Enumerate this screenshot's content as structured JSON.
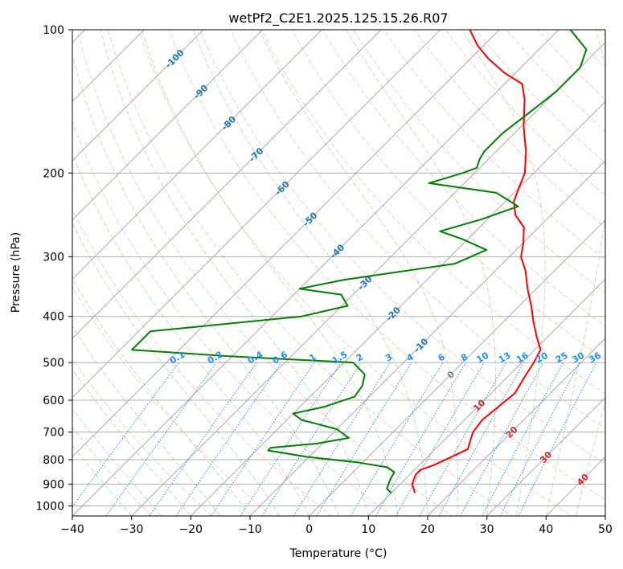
{
  "chart_data": {
    "type": "line",
    "subtype": "skew-t log-p diagram",
    "title": "wetPf2_C2E1.2025.125.15.26.R07",
    "xlabel": "Temperature (°C)",
    "ylabel": "Pressure (hPa)",
    "xlim": [
      -40,
      50
    ],
    "ylim": [
      1050,
      100
    ],
    "y_scale": "log",
    "grid": true,
    "x_ticks": [
      -40,
      -30,
      -20,
      -10,
      0,
      10,
      20,
      30,
      40,
      50
    ],
    "x_tick_labels": [
      "−40",
      "−30",
      "−20",
      "−10",
      "0",
      "10",
      "20",
      "30",
      "40",
      "50"
    ],
    "y_ticks": [
      1000,
      900,
      800,
      700,
      600,
      500,
      400,
      300,
      200,
      100
    ],
    "y_tick_labels": [
      "1000",
      "900",
      "800",
      "700",
      "600",
      "500",
      "400",
      "300",
      "200",
      "100"
    ],
    "series": [
      {
        "color": "#ff0000",
        "points": [
          {
            "p": 940,
            "t": 14.0
          },
          {
            "p": 900,
            "t": 12.0
          },
          {
            "p": 860,
            "t": 11.0
          },
          {
            "p": 840,
            "t": 11.0
          },
          {
            "p": 820,
            "t": 12.5
          },
          {
            "p": 790,
            "t": 14.0
          },
          {
            "p": 760,
            "t": 15.5
          },
          {
            "p": 730,
            "t": 14.5
          },
          {
            "p": 700,
            "t": 13.5
          },
          {
            "p": 660,
            "t": 13.0
          },
          {
            "p": 620,
            "t": 13.5
          },
          {
            "p": 580,
            "t": 14.0
          },
          {
            "p": 540,
            "t": 13.0
          },
          {
            "p": 500,
            "t": 12.0
          },
          {
            "p": 470,
            "t": 11.0
          },
          {
            "p": 440,
            "t": 8.0
          },
          {
            "p": 410,
            "t": 5.0
          },
          {
            "p": 380,
            "t": 2.0
          },
          {
            "p": 350,
            "t": -1.5
          },
          {
            "p": 320,
            "t": -5.0
          },
          {
            "p": 300,
            "t": -8.0
          },
          {
            "p": 280,
            "t": -10.0
          },
          {
            "p": 260,
            "t": -12.5
          },
          {
            "p": 245,
            "t": -16.0
          },
          {
            "p": 230,
            "t": -18.5
          },
          {
            "p": 215,
            "t": -20.0
          },
          {
            "p": 200,
            "t": -21.5
          },
          {
            "p": 180,
            "t": -25.0
          },
          {
            "p": 160,
            "t": -29.5
          },
          {
            "p": 140,
            "t": -34.0
          },
          {
            "p": 130,
            "t": -37.0
          },
          {
            "p": 123,
            "t": -42.0
          },
          {
            "p": 115,
            "t": -47.0
          },
          {
            "p": 108,
            "t": -51.0
          },
          {
            "p": 100,
            "t": -55.0
          }
        ]
      },
      {
        "color": "#008000",
        "points": [
          {
            "p": 940,
            "t": 10.0
          },
          {
            "p": 920,
            "t": 8.5
          },
          {
            "p": 880,
            "t": 7.5
          },
          {
            "p": 850,
            "t": 7.0
          },
          {
            "p": 830,
            "t": 5.0
          },
          {
            "p": 810,
            "t": -1.0
          },
          {
            "p": 790,
            "t": -10.0
          },
          {
            "p": 765,
            "t": -18.0
          },
          {
            "p": 755,
            "t": -18.0
          },
          {
            "p": 740,
            "t": -11.0
          },
          {
            "p": 720,
            "t": -6.5
          },
          {
            "p": 690,
            "t": -10.0
          },
          {
            "p": 660,
            "t": -17.5
          },
          {
            "p": 640,
            "t": -20.0
          },
          {
            "p": 620,
            "t": -16.0
          },
          {
            "p": 590,
            "t": -12.5
          },
          {
            "p": 560,
            "t": -13.0
          },
          {
            "p": 530,
            "t": -14.5
          },
          {
            "p": 500,
            "t": -18.5
          },
          {
            "p": 485,
            "t": -40.5
          },
          {
            "p": 470,
            "t": -58.0
          },
          {
            "p": 430,
            "t": -58.0
          },
          {
            "p": 400,
            "t": -35.0
          },
          {
            "p": 380,
            "t": -29.0
          },
          {
            "p": 360,
            "t": -32.0
          },
          {
            "p": 350,
            "t": -40.0
          },
          {
            "p": 335,
            "t": -34.0
          },
          {
            "p": 310,
            "t": -18.0
          },
          {
            "p": 290,
            "t": -15.0
          },
          {
            "p": 275,
            "t": -21.0
          },
          {
            "p": 265,
            "t": -26.0
          },
          {
            "p": 250,
            "t": -21.0
          },
          {
            "p": 235,
            "t": -17.0
          },
          {
            "p": 220,
            "t": -23.0
          },
          {
            "p": 210,
            "t": -36.0
          },
          {
            "p": 200,
            "t": -32.0
          },
          {
            "p": 195,
            "t": -30.5
          },
          {
            "p": 187,
            "t": -31.5
          },
          {
            "p": 180,
            "t": -32.0
          },
          {
            "p": 165,
            "t": -32.0
          },
          {
            "p": 150,
            "t": -31.0
          },
          {
            "p": 135,
            "t": -30.0
          },
          {
            "p": 120,
            "t": -30.0
          },
          {
            "p": 110,
            "t": -32.0
          },
          {
            "p": 100,
            "t": -38.0
          }
        ]
      }
    ],
    "isotherms": {
      "color": "#999999",
      "step": 10
    },
    "mixing_ratio_lines": {
      "color": "#1e90ff",
      "style": "dotted",
      "values": [
        0.1,
        0.2,
        0.4,
        0.6,
        1,
        1.5,
        2,
        3,
        4,
        6,
        8,
        10,
        13,
        16,
        20,
        25,
        30,
        36
      ],
      "labels": [
        "0.1",
        "0.2",
        "0.4",
        "0.6",
        "1",
        "1.5",
        "2",
        "3",
        "4",
        "6",
        "8",
        "10",
        "13",
        "16",
        "20",
        "25",
        "30",
        "36"
      ],
      "label_pressure": 500
    },
    "isotherm_labels": {
      "color": "#1f77b4",
      "values": [
        -100,
        -90,
        -80,
        -70,
        -60,
        -50,
        -40,
        -30,
        -20,
        -10
      ],
      "labels": [
        "-100",
        "-90",
        "-80",
        "-70",
        "-60",
        "-50",
        "-40",
        "-30",
        "-20",
        "-10"
      ]
    },
    "lower_isotherm_labels": [
      {
        "value": 0,
        "label": "0",
        "color": "#808080"
      },
      {
        "value": 10,
        "label": "10",
        "color": "#d62728"
      },
      {
        "value": 20,
        "label": "20",
        "color": "#d62728"
      },
      {
        "value": 30,
        "label": "30",
        "color": "#d62728"
      },
      {
        "value": 40,
        "label": "40",
        "color": "#d62728"
      }
    ],
    "dry_adiabats": {
      "color": "#ffa07a",
      "style": "dashed"
    },
    "moist_adiabats": {
      "color": "#7fbf7f",
      "style": "dashed"
    },
    "wetbulb_curves": {
      "color": "#c8a882",
      "style": "dashed"
    }
  }
}
